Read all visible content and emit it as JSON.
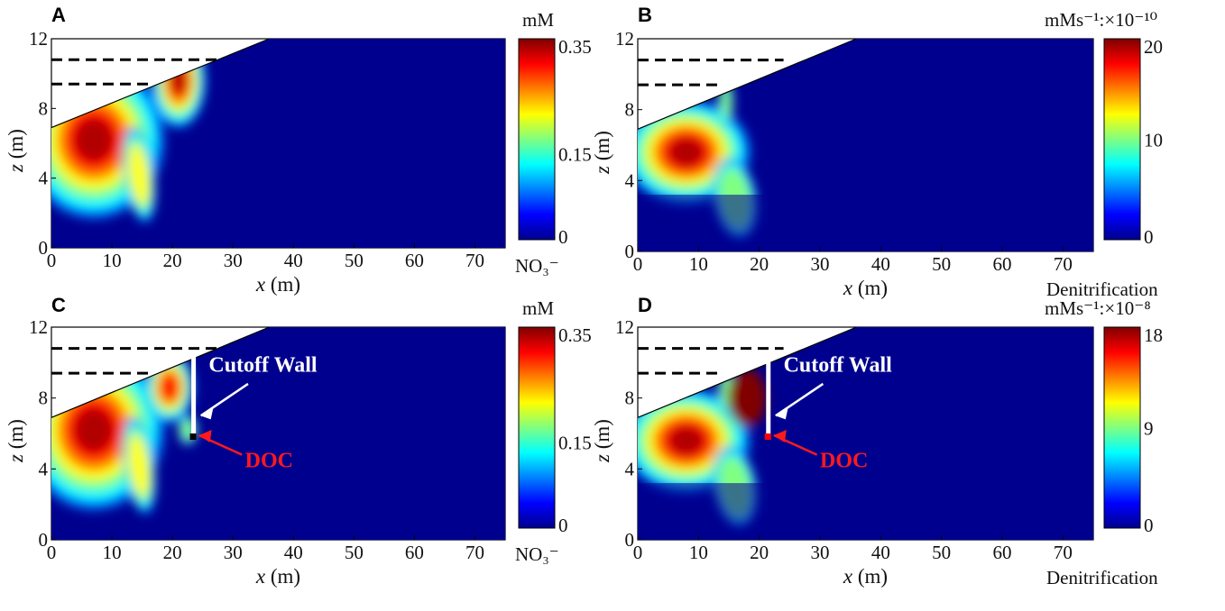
{
  "colors": {
    "jet_stops": [
      "#00008f",
      "#0000ff",
      "#0080ff",
      "#00ffff",
      "#80ff80",
      "#ffff00",
      "#ff8000",
      "#ff0000",
      "#800000"
    ],
    "background_blue": "#00008f",
    "dashed_line": "#000000",
    "wall": "#ffffff",
    "doc_annotation": "#ff1a1a"
  },
  "chart_data": [
    {
      "panel": "A",
      "type": "heatmap",
      "quantity": "NO3-",
      "x_ticks": [
        "0",
        "10",
        "20",
        "30",
        "40",
        "50",
        "60",
        "70"
      ],
      "y_ticks": [
        "0",
        "4",
        "8",
        "12"
      ],
      "xlabel_italic": "x",
      "xlabel_unit": " (m)",
      "ylabel_italic": "z",
      "ylabel_unit": " (m)",
      "xlim": [
        0,
        75
      ],
      "ylim": [
        0,
        12
      ],
      "colorbar": {
        "unit_label": "mM",
        "ticks": [
          "0.35",
          "0.15",
          "0"
        ],
        "tick_values": [
          0.35,
          0.15,
          0
        ],
        "range": [
          0,
          0.35
        ],
        "bottom_label": "NO₃⁻"
      },
      "dashed_levels_z": [
        10.8,
        9.4
      ],
      "dashed_x_end": [
        28,
        17
      ],
      "has_wall": false
    },
    {
      "panel": "B",
      "type": "heatmap",
      "quantity": "Denitrification",
      "x_ticks": [
        "0",
        "10",
        "20",
        "30",
        "40",
        "50",
        "60",
        "70"
      ],
      "y_ticks": [
        "0",
        "4",
        "8",
        "12"
      ],
      "xlabel_italic": "x",
      "xlabel_unit": " (m)",
      "ylabel_italic": "z",
      "ylabel_unit": " (m)",
      "xlim": [
        0,
        75
      ],
      "ylim": [
        0,
        12
      ],
      "colorbar": {
        "unit_label": "mMs⁻¹:×10⁻¹⁰",
        "ticks": [
          "20",
          "10",
          "0"
        ],
        "tick_values": [
          20,
          10,
          0
        ],
        "range": [
          0,
          20
        ],
        "bottom_label": "Denitrification"
      },
      "dashed_levels_z": [
        10.8,
        9.4
      ],
      "dashed_x_end": [
        24,
        14
      ],
      "has_wall": false
    },
    {
      "panel": "C",
      "type": "heatmap",
      "quantity": "NO3-",
      "x_ticks": [
        "0",
        "10",
        "20",
        "30",
        "40",
        "50",
        "60",
        "70"
      ],
      "y_ticks": [
        "0",
        "4",
        "8",
        "12"
      ],
      "xlabel_italic": "x",
      "xlabel_unit": " (m)",
      "ylabel_italic": "z",
      "ylabel_unit": " (m)",
      "xlim": [
        0,
        75
      ],
      "ylim": [
        0,
        12
      ],
      "colorbar": {
        "unit_label": "mM",
        "ticks": [
          "0.35",
          "0.15",
          "0"
        ],
        "tick_values": [
          0.35,
          0.15,
          0
        ],
        "range": [
          0,
          0.35
        ],
        "bottom_label": "NO₃⁻"
      },
      "dashed_levels_z": [
        10.8,
        9.4
      ],
      "dashed_x_end": [
        28,
        17
      ],
      "has_wall": true,
      "wall_annotation": "Cutoff Wall",
      "doc_annotation": "DOC"
    },
    {
      "panel": "D",
      "type": "heatmap",
      "quantity": "Denitrification",
      "x_ticks": [
        "0",
        "10",
        "20",
        "30",
        "40",
        "50",
        "60",
        "70"
      ],
      "y_ticks": [
        "0",
        "4",
        "8",
        "12"
      ],
      "xlabel_italic": "x",
      "xlabel_unit": " (m)",
      "ylabel_italic": "z",
      "ylabel_unit": " (m)",
      "xlim": [
        0,
        75
      ],
      "ylim": [
        0,
        12
      ],
      "colorbar": {
        "unit_label": "mMs⁻¹:×10⁻⁸",
        "ticks": [
          "18",
          "9",
          "0"
        ],
        "tick_values": [
          18,
          9,
          0
        ],
        "range": [
          0,
          18
        ],
        "bottom_label": "Denitrification"
      },
      "dashed_levels_z": [
        10.8,
        9.4
      ],
      "dashed_x_end": [
        24,
        14
      ],
      "has_wall": true,
      "wall_annotation": "Cutoff Wall",
      "doc_annotation": "DOC"
    }
  ]
}
